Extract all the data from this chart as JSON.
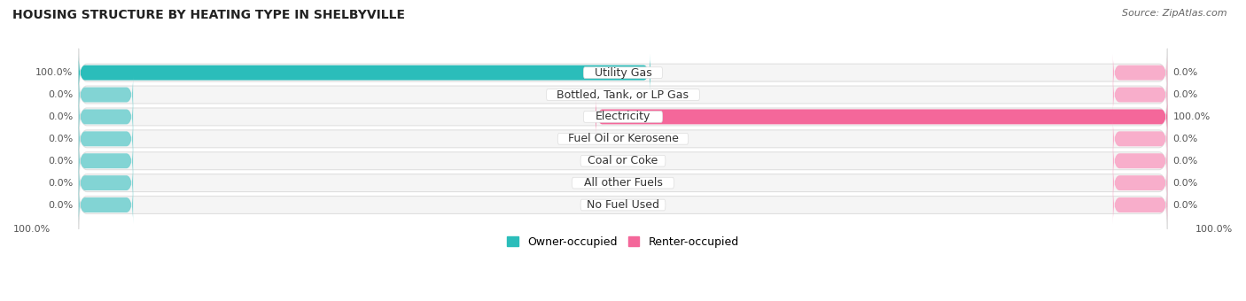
{
  "title": "HOUSING STRUCTURE BY HEATING TYPE IN SHELBYVILLE",
  "source": "Source: ZipAtlas.com",
  "categories": [
    "Utility Gas",
    "Bottled, Tank, or LP Gas",
    "Electricity",
    "Fuel Oil or Kerosene",
    "Coal or Coke",
    "All other Fuels",
    "No Fuel Used"
  ],
  "owner_values": [
    100.0,
    0.0,
    0.0,
    0.0,
    0.0,
    0.0,
    0.0
  ],
  "renter_values": [
    0.0,
    0.0,
    100.0,
    0.0,
    0.0,
    0.0,
    0.0
  ],
  "owner_color_full": "#2BBDBA",
  "owner_color_zero": "#82D4D4",
  "renter_color_full": "#F4679A",
  "renter_color_zero": "#F8AECB",
  "bg_row_color": "#ECECEC",
  "bg_row_color2": "#F5F5F5",
  "title_fontsize": 10,
  "source_fontsize": 8,
  "label_fontsize": 8,
  "category_fontsize": 9,
  "legend_fontsize": 9,
  "min_bar_width": 5.0,
  "xlim": 100
}
